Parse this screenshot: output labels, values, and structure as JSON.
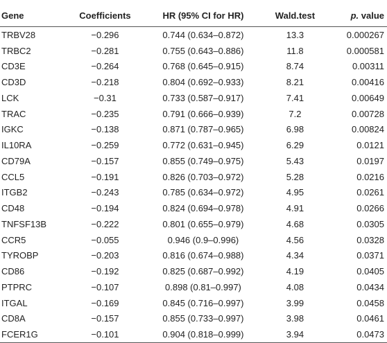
{
  "table": {
    "headers": {
      "gene": "Gene",
      "coefficients": "Coefficients",
      "hr": "HR (95% CI for HR)",
      "wald": "Wald.test",
      "p_italic": "p.",
      "p_rest": " value"
    },
    "rows": [
      {
        "gene": "TRBV28",
        "coef": "−0.296",
        "hr": "0.744 (0.634–0.872)",
        "wald": "13.3",
        "p": "0.000267"
      },
      {
        "gene": "TRBC2",
        "coef": "−0.281",
        "hr": "0.755 (0.643–0.886)",
        "wald": "11.8",
        "p": "0.000581"
      },
      {
        "gene": "CD3E",
        "coef": "−0.264",
        "hr": "0.768 (0.645–0.915)",
        "wald": "8.74",
        "p": "0.00311"
      },
      {
        "gene": "CD3D",
        "coef": "−0.218",
        "hr": "0.804 (0.692–0.933)",
        "wald": "8.21",
        "p": "0.00416"
      },
      {
        "gene": "LCK",
        "coef": "−0.31",
        "hr": "0.733 (0.587–0.917)",
        "wald": "7.41",
        "p": "0.00649"
      },
      {
        "gene": "TRAC",
        "coef": "−0.235",
        "hr": "0.791 (0.666–0.939)",
        "wald": "7.2",
        "p": "0.00728"
      },
      {
        "gene": "IGKC",
        "coef": "−0.138",
        "hr": "0.871 (0.787–0.965)",
        "wald": "6.98",
        "p": "0.00824"
      },
      {
        "gene": "IL10RA",
        "coef": "−0.259",
        "hr": "0.772 (0.631–0.945)",
        "wald": "6.29",
        "p": "0.0121"
      },
      {
        "gene": "CD79A",
        "coef": "−0.157",
        "hr": "0.855 (0.749–0.975)",
        "wald": "5.43",
        "p": "0.0197"
      },
      {
        "gene": "CCL5",
        "coef": "−0.191",
        "hr": "0.826 (0.703–0.972)",
        "wald": "5.28",
        "p": "0.0216"
      },
      {
        "gene": "ITGB2",
        "coef": "−0.243",
        "hr": "0.785 (0.634–0.972)",
        "wald": "4.95",
        "p": "0.0261"
      },
      {
        "gene": "CD48",
        "coef": "−0.194",
        "hr": "0.824 (0.694–0.978)",
        "wald": "4.91",
        "p": "0.0266"
      },
      {
        "gene": "TNFSF13B",
        "coef": "−0.222",
        "hr": "0.801 (0.655–0.979)",
        "wald": "4.68",
        "p": "0.0305"
      },
      {
        "gene": "CCR5",
        "coef": "−0.055",
        "hr": "0.946 (0.9–0.996)",
        "wald": "4.56",
        "p": "0.0328"
      },
      {
        "gene": "TYROBP",
        "coef": "−0.203",
        "hr": "0.816 (0.674–0.988)",
        "wald": "4.34",
        "p": "0.0371"
      },
      {
        "gene": "CD86",
        "coef": "−0.192",
        "hr": "0.825 (0.687–0.992)",
        "wald": "4.19",
        "p": "0.0405"
      },
      {
        "gene": "PTPRC",
        "coef": "−0.107",
        "hr": "0.898 (0.81–0.997)",
        "wald": "4.08",
        "p": "0.0434"
      },
      {
        "gene": "ITGAL",
        "coef": "−0.169",
        "hr": "0.845 (0.716–0.997)",
        "wald": "3.99",
        "p": "0.0458"
      },
      {
        "gene": "CD8A",
        "coef": "−0.157",
        "hr": "0.855 (0.733–0.997)",
        "wald": "3.98",
        "p": "0.0461"
      },
      {
        "gene": "FCER1G",
        "coef": "−0.101",
        "hr": "0.904 (0.818–0.999)",
        "wald": "3.94",
        "p": "0.0473"
      }
    ]
  }
}
